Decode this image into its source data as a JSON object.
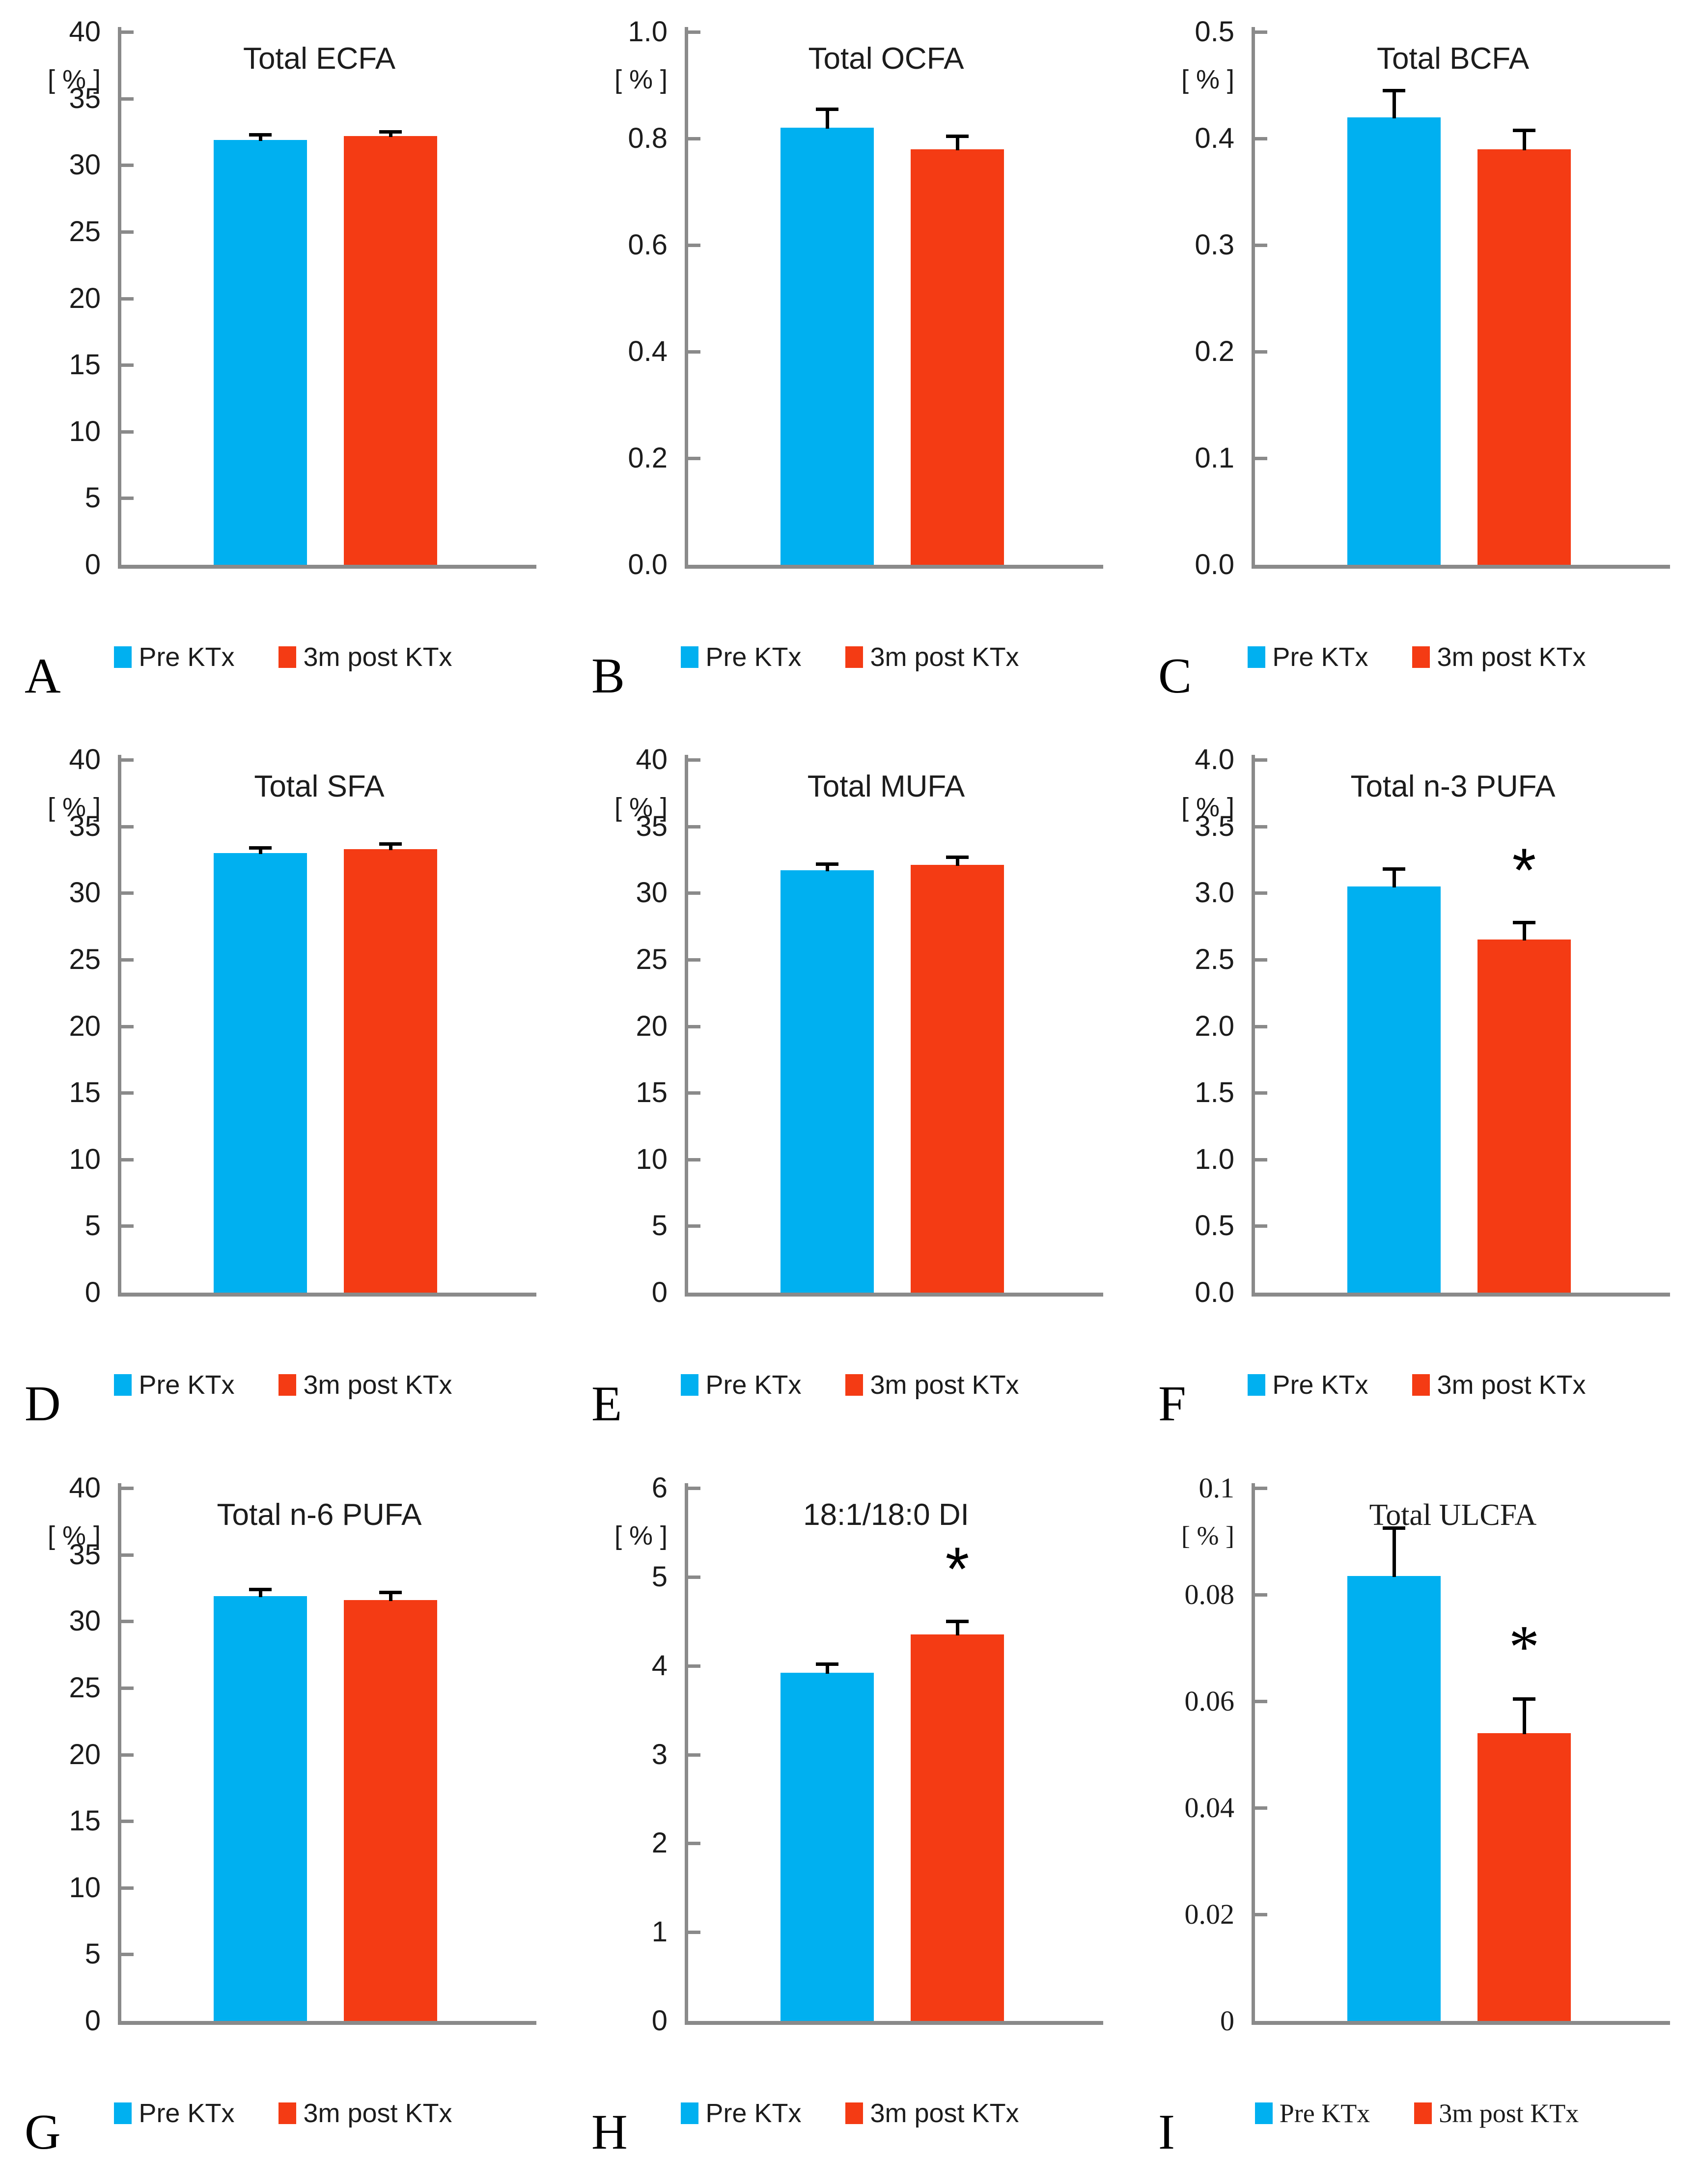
{
  "legend": {
    "pre": "Pre KTx",
    "post": "3m post KTx"
  },
  "colors": {
    "pre_bar": "#00B0F0",
    "post_bar": "#F43B14",
    "axis": "#8A8A8A",
    "text": "#1C1C1C",
    "error_bar": "#000000"
  },
  "chart_data": [
    {
      "type": "bar",
      "panel_letter": "A",
      "title": "Total ECFA",
      "ylabel": "[ % ]",
      "categories": [
        "Pre KTx",
        "3m post KTx"
      ],
      "values": [
        31.9,
        32.2
      ],
      "errors": [
        0.4,
        0.3
      ],
      "ylim": [
        0,
        40
      ],
      "yticks": [
        40,
        35,
        30,
        25,
        20,
        15,
        10,
        5,
        0
      ],
      "tick_labels": [
        "40",
        "35",
        "30",
        "25",
        "20",
        "15",
        "10",
        "5",
        "0"
      ],
      "significance": "",
      "font": "sans",
      "legend_position": "bottom-center",
      "grid": false
    },
    {
      "type": "bar",
      "panel_letter": "B",
      "title": "Total OCFA",
      "ylabel": "[ % ]",
      "categories": [
        "Pre KTx",
        "3m post KTx"
      ],
      "values": [
        0.82,
        0.78
      ],
      "errors": [
        0.035,
        0.025
      ],
      "ylim": [
        0,
        1.0
      ],
      "yticks": [
        1.0,
        0.8,
        0.6,
        0.4,
        0.2,
        0
      ],
      "tick_labels": [
        "1.0",
        "0.8",
        "0.6",
        "0.4",
        "0.2",
        "0.0"
      ],
      "significance": "",
      "font": "sans",
      "legend_position": "bottom-center",
      "grid": false
    },
    {
      "type": "bar",
      "panel_letter": "C",
      "title": "Total BCFA",
      "ylabel": "[ % ]",
      "categories": [
        "Pre KTx",
        "3m post KTx"
      ],
      "values": [
        0.42,
        0.39
      ],
      "errors": [
        0.025,
        0.018
      ],
      "ylim": [
        0,
        0.5
      ],
      "yticks": [
        0.5,
        0.4,
        0.3,
        0.2,
        0.1,
        0
      ],
      "tick_labels": [
        "0.5",
        "0.4",
        "0.3",
        "0.2",
        "0.1",
        "0.0"
      ],
      "significance": "",
      "font": "sans",
      "legend_position": "bottom-center",
      "grid": false
    },
    {
      "type": "bar",
      "panel_letter": "D",
      "title": "Total SFA",
      "ylabel": "[ % ]",
      "categories": [
        "Pre KTx",
        "3m post KTx"
      ],
      "values": [
        33.0,
        33.3
      ],
      "errors": [
        0.4,
        0.4
      ],
      "ylim": [
        0,
        40
      ],
      "yticks": [
        40,
        35,
        30,
        25,
        20,
        15,
        10,
        5,
        0
      ],
      "tick_labels": [
        "40",
        "35",
        "30",
        "25",
        "20",
        "15",
        "10",
        "5",
        "0"
      ],
      "significance": "",
      "font": "sans",
      "legend_position": "bottom-center",
      "grid": false
    },
    {
      "type": "bar",
      "panel_letter": "E",
      "title": "Total MUFA",
      "ylabel": "[ % ]",
      "categories": [
        "Pre KTx",
        "3m post KTx"
      ],
      "values": [
        31.7,
        32.1
      ],
      "errors": [
        0.5,
        0.6
      ],
      "ylim": [
        0,
        40
      ],
      "yticks": [
        40,
        35,
        30,
        25,
        20,
        15,
        10,
        5,
        0
      ],
      "tick_labels": [
        "40",
        "35",
        "30",
        "25",
        "20",
        "15",
        "10",
        "5",
        "0"
      ],
      "significance": "",
      "font": "sans",
      "legend_position": "bottom-center",
      "grid": false
    },
    {
      "type": "bar",
      "panel_letter": "F",
      "title": "Total n-3 PUFA",
      "ylabel": "[ % ]",
      "categories": [
        "Pre KTx",
        "3m post KTx"
      ],
      "values": [
        3.05,
        2.65
      ],
      "errors": [
        0.13,
        0.13
      ],
      "ylim": [
        0,
        4.0
      ],
      "yticks": [
        4.0,
        3.5,
        3.0,
        2.5,
        2.0,
        1.5,
        1.0,
        0.5,
        0
      ],
      "tick_labels": [
        "4.0",
        "3.5",
        "3.0",
        "2.5",
        "2.0",
        "1.5",
        "1.0",
        "0.5",
        "0.0"
      ],
      "significance": "*",
      "font": "sans",
      "legend_position": "bottom-center",
      "grid": false
    },
    {
      "type": "bar",
      "panel_letter": "G",
      "title": "Total n-6 PUFA",
      "ylabel": "[ % ]",
      "categories": [
        "Pre KTx",
        "3m post KTx"
      ],
      "values": [
        31.9,
        31.6
      ],
      "errors": [
        0.5,
        0.6
      ],
      "ylim": [
        0,
        40
      ],
      "yticks": [
        40,
        35,
        30,
        25,
        20,
        15,
        10,
        5,
        0
      ],
      "tick_labels": [
        "40",
        "35",
        "30",
        "25",
        "20",
        "15",
        "10",
        "5",
        "0"
      ],
      "significance": "",
      "font": "sans",
      "legend_position": "bottom-center",
      "grid": false
    },
    {
      "type": "bar",
      "panel_letter": "H",
      "title": "18:1/18:0 DI",
      "ylabel": "[ % ]",
      "categories": [
        "Pre KTx",
        "3m post KTx"
      ],
      "values": [
        3.92,
        4.35
      ],
      "errors": [
        0.1,
        0.15
      ],
      "ylim": [
        0,
        6
      ],
      "yticks": [
        6,
        5,
        4,
        3,
        2,
        1,
        0
      ],
      "tick_labels": [
        "6",
        "5",
        "4",
        "3",
        "2",
        "1",
        "0"
      ],
      "significance": "*",
      "font": "sans",
      "legend_position": "bottom-center",
      "grid": false
    },
    {
      "type": "bar",
      "panel_letter": "I",
      "title": "Total ULCFA",
      "ylabel": "[ % ]",
      "categories": [
        "Pre KTx",
        "3m post KTx"
      ],
      "values": [
        0.0835,
        0.054
      ],
      "errors": [
        0.009,
        0.0065
      ],
      "ylim": [
        0,
        0.1
      ],
      "yticks": [
        0.1,
        0.08,
        0.06,
        0.04,
        0.02,
        0
      ],
      "tick_labels": [
        "0.1",
        "0.08",
        "0.06",
        "0.04",
        "0.02",
        "0"
      ],
      "significance": "*",
      "font": "serif",
      "legend_position": "bottom-center",
      "grid": false
    }
  ]
}
